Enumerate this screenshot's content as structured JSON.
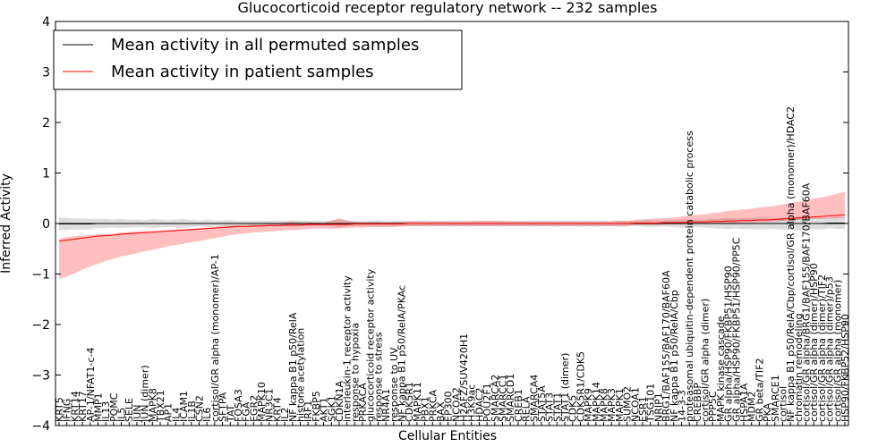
{
  "chart_data": {
    "type": "line",
    "title": "Glucocorticoid receptor regulatory network -- 232 samples",
    "xlabel": "Cellular Entities",
    "ylabel": "Inferred Activity",
    "ylim": [
      -4,
      4
    ],
    "yticks": [
      -4,
      -3,
      -2,
      -1,
      0,
      1,
      2,
      3,
      4
    ],
    "grid": false,
    "legend_position": "top-left",
    "categories": [
      "KRT5",
      "IFNG",
      "KRT14",
      "KRT17",
      "AP-1/NFAT1-c-4",
      "MMP1",
      "IL13",
      "POMC",
      "IL5",
      "SELE",
      "JUN",
      "JUN (dimer)",
      "MAPK8",
      "TBX21",
      "AP1",
      "IL4",
      "ICAM1",
      "IL1B",
      "CSN2",
      "IL6",
      "cortisol/GR alpha (monomer)/AP-1",
      "SFTPA",
      "TAT",
      "FOSA3",
      "FGA",
      "EGR2",
      "MAPK10",
      "NR3C1",
      "KRT4",
      "IL2",
      "NF kappa B1 p50/RelA",
      "histone acetylation",
      "IRF1",
      "FKBP5",
      "AKT1",
      "SGK1",
      "CDKN1A",
      "interleukin-1 receptor activity",
      "response to hypoxia",
      "PRKACA",
      "glucocorticoid receptor activity",
      "response to stress",
      "NR4A1",
      "response to UV",
      "NF kappa B1 p50/RelA/PKAc",
      "CDK5R1",
      "MAPK11",
      "PBX1",
      "PRKCA",
      "BAX",
      "EP300",
      "NCOA2",
      "H2AFZ/SUV420H1",
      "H3K9ac",
      "HDAC2",
      "POU2F1",
      "SMARCA2",
      "SMARCC1",
      "SMARCD1",
      "CREB1",
      "RELA",
      "SMARCA4",
      "STAT5A",
      "STAT3",
      "STAT1",
      "STAT1 (dimer)",
      "CDK5",
      "CDK5R1/CDK5",
      "MAPK9",
      "MAPK14",
      "MAPK8",
      "MAPK3",
      "MAPK1",
      "SUMO2",
      "NCOA1",
      "ESR1",
      "TSG101",
      "NRIP1",
      "BRG1/BAF155/BAF170/BAF60A",
      "NF kappa B1 p50/RelA/Cbp",
      "14-3-3",
      "proteasomal ubiquitin-dependent protein catabolic process",
      "CREBBP",
      "cortisol/GR alpha (dimer)",
      "PPP5C",
      "MAPK kinase cascade",
      "GR alpha/HSP90/FKBP51/HSP90",
      "GR alpha/HSP90/FKBP51/HSP90/PP5C",
      "HSPA1A",
      "MDM2",
      "GR beta/TIF2",
      "PKA",
      "SMARCE1",
      "cortisol",
      "NF kappa B1 p50/RelA/Cbp/cortisol/GR alpha (monomer)/HDAC2",
      "chromatin remodeling",
      "cortisol/GR alpha/BRG1/BAF155/BAF170/BAF60A",
      "cortisol/GR alpha (dimer)/HSP90",
      "cortisol/GR alpha (dimer)/TIF2",
      "cortisol/GR alpha (dimer)/p53",
      "cortisol/GR alpha (monomer)",
      "HSP90/FKBP52/HSP90"
    ],
    "series": [
      {
        "name": "Mean activity in all permuted samples",
        "color": "#000000",
        "values": [
          -0.01,
          -0.01,
          -0.01,
          -0.01,
          -0.01,
          0,
          0,
          0,
          0,
          0,
          0,
          0,
          0,
          0,
          0,
          0,
          0,
          0,
          0,
          0,
          0,
          0,
          0,
          0,
          0,
          0,
          0,
          0,
          0,
          0,
          0,
          0,
          0,
          0,
          0,
          0,
          0,
          0,
          0,
          0,
          0,
          0,
          0,
          0,
          0,
          0,
          0,
          0,
          0,
          0,
          0,
          0,
          0,
          0,
          0,
          0,
          0,
          0,
          0,
          0,
          0,
          0,
          0,
          0,
          0,
          0,
          0,
          0,
          0,
          0,
          0,
          0,
          0,
          0,
          0,
          0,
          0,
          0,
          0,
          0,
          0,
          0,
          0,
          0,
          0,
          0,
          0,
          0,
          0,
          0,
          0,
          0,
          0,
          0,
          0,
          0,
          0,
          0,
          0,
          0.01,
          0.01,
          0.01
        ],
        "band_low": [
          -0.13,
          -0.12,
          -0.11,
          -0.11,
          -0.1,
          -0.09,
          -0.09,
          -0.08,
          -0.09,
          -0.08,
          -0.08,
          -0.07,
          -0.09,
          -0.08,
          -0.07,
          -0.08,
          -0.09,
          -0.07,
          -0.06,
          -0.07,
          -0.06,
          -0.06,
          -0.07,
          -0.05,
          -0.06,
          -0.05,
          -0.06,
          -0.05,
          -0.06,
          -0.05,
          -0.06,
          -0.06,
          -0.05,
          -0.05,
          -0.05,
          -0.06,
          -0.08,
          -0.05,
          -0.05,
          -0.05,
          -0.05,
          -0.06,
          -0.05,
          -0.05,
          -0.05,
          -0.05,
          -0.05,
          -0.06,
          -0.05,
          -0.05,
          -0.05,
          -0.06,
          -0.05,
          -0.06,
          -0.05,
          -0.05,
          -0.05,
          -0.06,
          -0.05,
          -0.05,
          -0.05,
          -0.06,
          -0.05,
          -0.05,
          -0.06,
          -0.05,
          -0.05,
          -0.06,
          -0.05,
          -0.06,
          -0.05,
          -0.05,
          -0.06,
          -0.05,
          -0.05,
          -0.06,
          -0.07,
          -0.06,
          -0.06,
          -0.07,
          -0.08,
          -0.08,
          -0.07,
          -0.08,
          -0.09,
          -0.1,
          -0.11,
          -0.1,
          -0.11,
          -0.11,
          -0.12,
          -0.11,
          -0.11,
          -0.12,
          -0.13,
          -0.14,
          -0.12,
          -0.11,
          -0.12,
          -0.1,
          -0.12,
          -0.11
        ],
        "band_high": [
          0.13,
          0.12,
          0.11,
          0.11,
          0.1,
          0.09,
          0.09,
          0.08,
          0.09,
          0.08,
          0.08,
          0.07,
          0.09,
          0.08,
          0.07,
          0.08,
          0.09,
          0.07,
          0.06,
          0.07,
          0.06,
          0.06,
          0.07,
          0.05,
          0.06,
          0.05,
          0.06,
          0.05,
          0.06,
          0.05,
          0.06,
          0.06,
          0.05,
          0.05,
          0.05,
          0.06,
          0.08,
          0.05,
          0.05,
          0.05,
          0.05,
          0.06,
          0.05,
          0.05,
          0.05,
          0.05,
          0.05,
          0.06,
          0.05,
          0.05,
          0.05,
          0.06,
          0.05,
          0.06,
          0.05,
          0.05,
          0.05,
          0.06,
          0.05,
          0.05,
          0.05,
          0.06,
          0.05,
          0.05,
          0.06,
          0.05,
          0.05,
          0.06,
          0.05,
          0.06,
          0.05,
          0.05,
          0.06,
          0.05,
          0.05,
          0.06,
          0.07,
          0.06,
          0.06,
          0.07,
          0.08,
          0.08,
          0.07,
          0.08,
          0.09,
          0.1,
          0.11,
          0.1,
          0.11,
          0.11,
          0.12,
          0.11,
          0.11,
          0.12,
          0.13,
          0.14,
          0.12,
          0.11,
          0.12,
          0.1,
          0.12,
          0.11
        ]
      },
      {
        "name": "Mean activity in patient samples",
        "color": "#ff0000",
        "values": [
          -0.35,
          -0.33,
          -0.31,
          -0.29,
          -0.27,
          -0.25,
          -0.24,
          -0.23,
          -0.21,
          -0.2,
          -0.19,
          -0.18,
          -0.17,
          -0.16,
          -0.15,
          -0.14,
          -0.13,
          -0.12,
          -0.11,
          -0.1,
          -0.09,
          -0.08,
          -0.07,
          -0.06,
          -0.06,
          -0.05,
          -0.05,
          -0.04,
          -0.04,
          -0.03,
          -0.03,
          -0.03,
          -0.02,
          -0.02,
          -0.02,
          -0.02,
          -0.02,
          -0.02,
          -0.01,
          -0.01,
          -0.01,
          -0.01,
          -0.01,
          -0.01,
          -0.01,
          0,
          0,
          0,
          0,
          0,
          0,
          0,
          0,
          0,
          0,
          0,
          0,
          0,
          0,
          0,
          0,
          0,
          0,
          0,
          0,
          0,
          0,
          0,
          0,
          0,
          0,
          0,
          0,
          0,
          0.01,
          0.01,
          0.01,
          0.01,
          0.02,
          0.02,
          0.02,
          0.03,
          0.03,
          0.03,
          0.04,
          0.04,
          0.05,
          0.05,
          0.06,
          0.06,
          0.07,
          0.07,
          0.08,
          0.09,
          0.1,
          0.11,
          0.12,
          0.13,
          0.14,
          0.15,
          0.16,
          0.17
        ],
        "band_low": [
          -0.75,
          -0.72,
          -0.68,
          -0.62,
          -0.58,
          -0.55,
          -0.5,
          -0.47,
          -0.44,
          -0.42,
          -0.4,
          -0.37,
          -0.35,
          -0.33,
          -0.3,
          -0.29,
          -0.27,
          -0.25,
          -0.24,
          -0.22,
          -0.2,
          -0.18,
          -0.16,
          -0.15,
          -0.14,
          -0.13,
          -0.12,
          -0.12,
          -0.11,
          -0.1,
          -0.1,
          -0.09,
          -0.09,
          -0.08,
          -0.08,
          -0.08,
          -0.08,
          -0.07,
          -0.07,
          -0.07,
          -0.06,
          -0.06,
          -0.06,
          -0.06,
          -0.05,
          -0.05,
          -0.05,
          -0.05,
          -0.05,
          -0.05,
          -0.05,
          -0.05,
          -0.05,
          -0.05,
          -0.05,
          -0.05,
          -0.05,
          -0.05,
          -0.05,
          -0.05,
          -0.05,
          -0.05,
          -0.05,
          -0.05,
          -0.05,
          -0.05,
          -0.05,
          -0.05,
          -0.05,
          -0.05,
          -0.05,
          -0.05,
          -0.05,
          -0.05,
          -0.04,
          -0.04,
          -0.04,
          -0.04,
          -0.04,
          -0.04,
          -0.04,
          -0.04,
          -0.04,
          -0.04,
          -0.04,
          -0.04,
          -0.04,
          -0.04,
          -0.04,
          -0.04,
          -0.04,
          -0.04,
          -0.04,
          -0.04,
          -0.04,
          -0.04,
          -0.04,
          -0.04,
          -0.05,
          -0.05,
          -0.06,
          -0.06
        ],
        "band_high": [
          0.05,
          0.06,
          0.06,
          0.05,
          0.04,
          0.04,
          0.03,
          0.03,
          0.03,
          0.03,
          0.03,
          0.03,
          0.02,
          0.02,
          0.02,
          0.02,
          0.02,
          0.02,
          0.02,
          0.02,
          0.02,
          0.03,
          0.03,
          0.03,
          0.03,
          0.03,
          0.03,
          0.04,
          0.04,
          0.05,
          0.07,
          0.05,
          0.04,
          0.04,
          0.03,
          0.08,
          0.12,
          0.08,
          0.04,
          0.03,
          0.04,
          0.04,
          0.03,
          0.04,
          0.04,
          0.04,
          0.04,
          0.04,
          0.04,
          0.04,
          0.04,
          0.04,
          0.04,
          0.04,
          0.05,
          0.05,
          0.05,
          0.04,
          0.04,
          0.04,
          0.04,
          0.04,
          0.04,
          0.04,
          0.04,
          0.04,
          0.04,
          0.04,
          0.04,
          0.04,
          0.04,
          0.04,
          0.05,
          0.05,
          0.06,
          0.07,
          0.08,
          0.09,
          0.09,
          0.1,
          0.12,
          0.13,
          0.14,
          0.15,
          0.17,
          0.18,
          0.2,
          0.21,
          0.22,
          0.23,
          0.25,
          0.26,
          0.27,
          0.29,
          0.3,
          0.32,
          0.34,
          0.36,
          0.38,
          0.4,
          0.43,
          0.46
        ]
      }
    ]
  }
}
